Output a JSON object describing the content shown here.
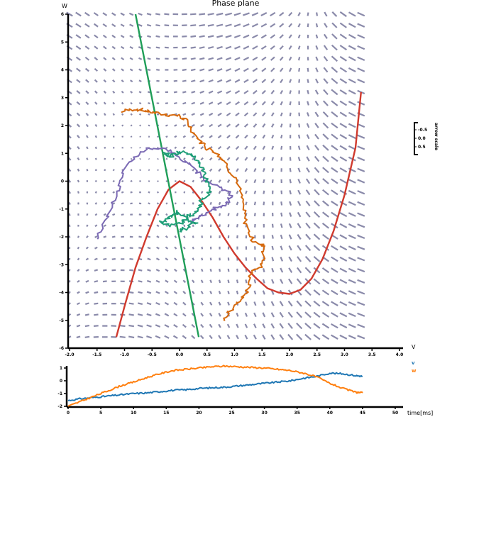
{
  "colors": {
    "quiver": "#8a8aaa",
    "nullcline_v": "#d03a2e",
    "nullcline_w": "#1f9e58",
    "trajectory_orange": "#d66a0e",
    "trajectory_purple": "#7b6ab4",
    "trajectory_green": "#1f9e78",
    "trace_v": "#1f77b4",
    "trace_w": "#ff7f0e"
  },
  "chart_data": [
    {
      "type": "phase-plane",
      "title": "Phase plane",
      "xlabel": "V",
      "ylabel": "W",
      "xlim": [
        -2.0,
        4.0
      ],
      "ylim": [
        -6,
        6
      ],
      "x_ticks": [
        "-2.0",
        "-1.5",
        "-1.0",
        "-0.5",
        "0.0",
        "0.5",
        "1.0",
        "1.5",
        "2.0",
        "2.5",
        "3.0",
        "3.5",
        "4.0"
      ],
      "y_ticks": [
        "6",
        "5",
        "4",
        "3",
        "2",
        "1",
        "0",
        "-1",
        "-2",
        "-3",
        "-4",
        "-5",
        "-6"
      ],
      "arrow_scale": {
        "label": "arrow scale",
        "ticks": [
          "-0.5",
          "0.0",
          "0.5"
        ]
      },
      "quiver_domain": {
        "x": [
          -2.0,
          3.3
        ],
        "y": [
          -5.6,
          6.0
        ]
      },
      "nullcline_v": {
        "x": [
          -1.15,
          -1.0,
          -0.8,
          -0.6,
          -0.4,
          -0.2,
          0.0,
          0.2,
          0.4,
          0.6,
          0.8,
          1.0,
          1.2,
          1.4,
          1.6,
          1.8,
          2.0,
          2.2,
          2.4,
          2.6,
          2.8,
          3.0,
          3.2,
          3.3
        ],
        "y": [
          -5.6,
          -4.5,
          -3.1,
          -2.0,
          -1.0,
          -0.3,
          0.0,
          -0.2,
          -0.7,
          -1.3,
          -2.0,
          -2.6,
          -3.1,
          -3.5,
          -3.85,
          -4.0,
          -4.05,
          -3.9,
          -3.5,
          -2.8,
          -1.8,
          -0.5,
          1.2,
          3.2
        ]
      },
      "nullcline_w": {
        "x": [
          -0.8,
          0.35
        ],
        "y": [
          6.0,
          -5.6
        ]
      },
      "trajectories": [
        {
          "color_key": "trajectory_orange",
          "x": [
            -1.05,
            -0.8,
            -0.55,
            -0.3,
            0.0,
            0.15,
            0.3,
            0.5,
            0.7,
            0.85,
            1.05,
            1.15,
            1.2,
            1.35,
            1.55,
            1.5,
            1.3,
            1.25,
            1.1,
            0.9,
            0.8
          ],
          "y": [
            2.5,
            2.6,
            2.5,
            2.4,
            2.35,
            2.1,
            1.6,
            1.2,
            1.0,
            0.6,
            0.0,
            -0.8,
            -1.5,
            -2.2,
            -2.3,
            -3.0,
            -3.3,
            -3.9,
            -4.3,
            -4.7,
            -5.0
          ]
        },
        {
          "color_key": "trajectory_purple",
          "x": [
            -1.5,
            -1.3,
            -1.1,
            -1.0,
            -0.8,
            -0.55,
            -0.25,
            -0.05,
            0.2,
            0.45,
            0.7,
            0.95,
            0.8,
            0.6,
            0.45,
            0.3,
            0.2
          ],
          "y": [
            -2.1,
            -1.2,
            -0.3,
            0.4,
            0.9,
            1.2,
            1.15,
            0.9,
            0.6,
            0.1,
            -0.2,
            -0.5,
            -0.9,
            -1.0,
            -1.2,
            -1.35,
            -1.5
          ]
        },
        {
          "color_key": "trajectory_green",
          "x": [
            -0.3,
            -0.15,
            0.0,
            0.2,
            0.35,
            0.45,
            0.5,
            0.55,
            0.4,
            0.35,
            0.25,
            0.1,
            -0.05,
            -0.2,
            -0.35,
            -0.1,
            0.1,
            0.3,
            0.1,
            0.0
          ],
          "y": [
            1.0,
            0.9,
            1.05,
            1.0,
            0.7,
            0.3,
            0.0,
            -0.4,
            -0.7,
            -1.0,
            -1.2,
            -1.3,
            -1.1,
            -1.35,
            -1.5,
            -1.6,
            -1.4,
            -1.45,
            -1.7,
            -1.8
          ]
        }
      ]
    },
    {
      "type": "line",
      "xlabel": "time[ms]",
      "xlim": [
        0,
        50
      ],
      "ylim": [
        -2,
        1
      ],
      "x_ticks": [
        "0",
        "5",
        "10",
        "15",
        "20",
        "25",
        "30",
        "35",
        "40",
        "45",
        "50"
      ],
      "y_ticks": [
        "1",
        "0",
        "-1",
        "-2"
      ],
      "series": [
        {
          "name": "v",
          "color_key": "trace_v",
          "x": [
            0,
            2,
            4,
            6,
            8,
            10,
            12,
            14,
            16,
            18,
            20,
            22,
            24,
            26,
            28,
            30,
            32,
            34,
            36,
            38,
            40,
            42,
            44,
            45
          ],
          "y": [
            -1.55,
            -1.4,
            -1.3,
            -1.2,
            -1.1,
            -1.0,
            -0.95,
            -0.85,
            -0.75,
            -0.7,
            -0.6,
            -0.55,
            -0.5,
            -0.4,
            -0.3,
            -0.2,
            -0.1,
            0.0,
            0.2,
            0.35,
            0.6,
            0.55,
            0.4,
            0.35
          ]
        },
        {
          "name": "w",
          "color_key": "trace_w",
          "x": [
            0,
            2,
            4,
            6,
            8,
            10,
            12,
            14,
            16,
            18,
            20,
            22,
            24,
            26,
            28,
            30,
            32,
            34,
            36,
            38,
            40,
            42,
            44,
            45
          ],
          "y": [
            -2.0,
            -1.6,
            -1.2,
            -0.8,
            -0.4,
            -0.1,
            0.25,
            0.55,
            0.8,
            0.9,
            1.0,
            1.1,
            1.15,
            1.1,
            1.05,
            1.0,
            0.9,
            0.8,
            0.6,
            0.3,
            -0.2,
            -0.6,
            -0.9,
            -0.95
          ]
        }
      ]
    }
  ]
}
